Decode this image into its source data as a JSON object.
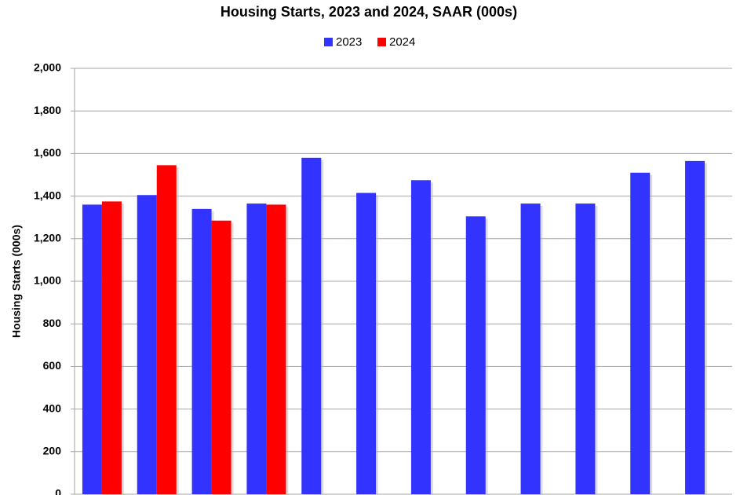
{
  "chart_data": {
    "type": "bar",
    "title": "Housing Starts,  2023 and 2024, SAAR (000s)",
    "y_label": "Housing Starts (000s)",
    "categories": [
      null,
      null,
      null,
      null,
      null,
      null,
      null,
      null,
      null,
      null,
      null,
      null
    ],
    "series": [
      {
        "name": "2023",
        "color": "#3333ff",
        "values": [
          1360,
          1405,
          1340,
          1365,
          1580,
          1415,
          1475,
          1305,
          1365,
          1365,
          1510,
          1565
        ]
      },
      {
        "name": "2024",
        "color": "#ff0000",
        "values": [
          1375,
          1545,
          1285,
          1360,
          null,
          null,
          null,
          null,
          null,
          null,
          null,
          null
        ]
      }
    ],
    "ylim": [
      0,
      2000
    ],
    "yticks": [
      0,
      200,
      400,
      600,
      800,
      {
        "value": 1000,
        "label": "1,000"
      },
      {
        "value": 1200,
        "label": "1,200"
      },
      {
        "value": 1400,
        "label": "1,400"
      },
      {
        "value": 1600,
        "label": "1,600"
      },
      {
        "value": 1800,
        "label": "1,800"
      },
      {
        "value": 2000,
        "label": "2,000"
      }
    ],
    "grid": true,
    "legend": "top"
  }
}
